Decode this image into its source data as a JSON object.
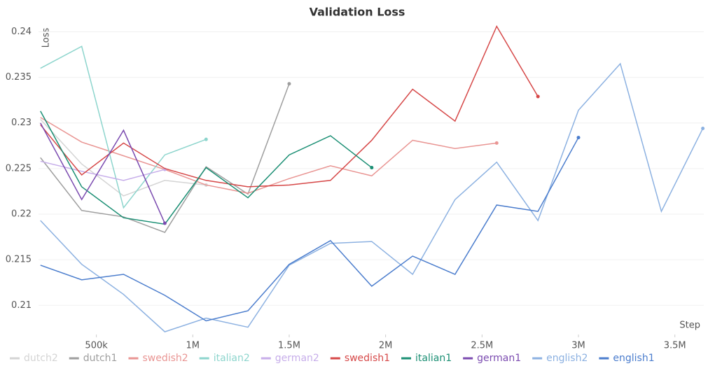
{
  "chart_data": {
    "type": "line",
    "title": "Validation Loss",
    "y_label": "Loss",
    "x_label": "Step",
    "xlim": [
      200000,
      3650000
    ],
    "ylim": [
      0.2068,
      0.2408
    ],
    "xticks": [
      {
        "value": 500000,
        "label": "500k"
      },
      {
        "value": 1000000,
        "label": "1M"
      },
      {
        "value": 1500000,
        "label": "1.5M"
      },
      {
        "value": 2000000,
        "label": "2M"
      },
      {
        "value": 2500000,
        "label": "2.5M"
      },
      {
        "value": 3000000,
        "label": "3M"
      },
      {
        "value": 3500000,
        "label": "3.5M"
      }
    ],
    "yticks": [
      0.21,
      0.215,
      0.22,
      0.225,
      0.23,
      0.235,
      0.24
    ],
    "grid": true,
    "legend": "bottom",
    "x": [
      210000,
      424000,
      641000,
      855000,
      1069000,
      1286000,
      1500000,
      1714000,
      1928000,
      2140000,
      2360000,
      2576000,
      2790000,
      3000000,
      3217000,
      3430000,
      3645000
    ],
    "series": [
      {
        "name": "dutch2",
        "color": "#d4d4d4",
        "values": [
          0.2304,
          0.2255,
          0.222,
          0.2237,
          0.2232,
          null,
          null,
          null,
          null,
          null,
          null,
          null,
          null,
          null,
          null,
          null,
          null
        ]
      },
      {
        "name": "dutch1",
        "color": "#9e9e9e",
        "values": [
          0.2262,
          0.2204,
          0.2197,
          0.218,
          0.2252,
          0.2222,
          0.2343,
          null,
          null,
          null,
          null,
          null,
          null,
          null,
          null,
          null,
          null
        ]
      },
      {
        "name": "swedish2",
        "color": "#e99593",
        "values": [
          0.2306,
          0.2279,
          0.2264,
          0.2249,
          0.2232,
          0.2223,
          0.2239,
          0.2253,
          0.2242,
          0.2281,
          0.2272,
          0.2278,
          null,
          null,
          null,
          null,
          null
        ]
      },
      {
        "name": "italian2",
        "color": "#8dd5cd",
        "values": [
          0.236,
          0.2384,
          0.2207,
          0.2265,
          0.2282,
          null,
          null,
          null,
          null,
          null,
          null,
          null,
          null,
          null,
          null,
          null,
          null
        ]
      },
      {
        "name": "german2",
        "color": "#c7aeea",
        "values": [
          0.2258,
          0.2247,
          0.2237,
          0.2249,
          null,
          null,
          null,
          null,
          null,
          null,
          null,
          null,
          null,
          null,
          null,
          null,
          null
        ]
      },
      {
        "name": "swedish1",
        "color": "#d64848",
        "values": [
          0.2298,
          0.2243,
          0.2278,
          0.225,
          0.2237,
          0.223,
          0.2232,
          0.2237,
          0.2281,
          0.2337,
          0.2302,
          0.2406,
          0.2329,
          null,
          null,
          null,
          null
        ]
      },
      {
        "name": "italian1",
        "color": "#1b8f74",
        "values": [
          0.2313,
          0.223,
          0.2196,
          0.2189,
          0.2251,
          0.2218,
          0.2265,
          0.2286,
          0.2251,
          null,
          null,
          null,
          null,
          null,
          null,
          null,
          null
        ]
      },
      {
        "name": "german1",
        "color": "#7b4bb0",
        "values": [
          0.23,
          0.2216,
          0.2292,
          0.219,
          null,
          null,
          null,
          null,
          null,
          null,
          null,
          null,
          null,
          null,
          null,
          null,
          null
        ]
      },
      {
        "name": "english2",
        "color": "#8cb1e1",
        "values": [
          0.2193,
          0.2145,
          0.2112,
          0.2071,
          0.2086,
          0.2076,
          0.2144,
          0.2168,
          0.217,
          0.2134,
          0.2216,
          0.2257,
          0.2193,
          0.2314,
          0.2365,
          0.2203,
          0.2294
        ]
      },
      {
        "name": "english1",
        "color": "#4b7dcd",
        "values": [
          0.2144,
          0.2128,
          0.2134,
          0.2111,
          0.2083,
          0.2094,
          0.2145,
          0.2171,
          0.2121,
          0.2154,
          0.2134,
          0.221,
          0.2203,
          0.2284,
          null,
          null,
          null
        ]
      }
    ]
  }
}
